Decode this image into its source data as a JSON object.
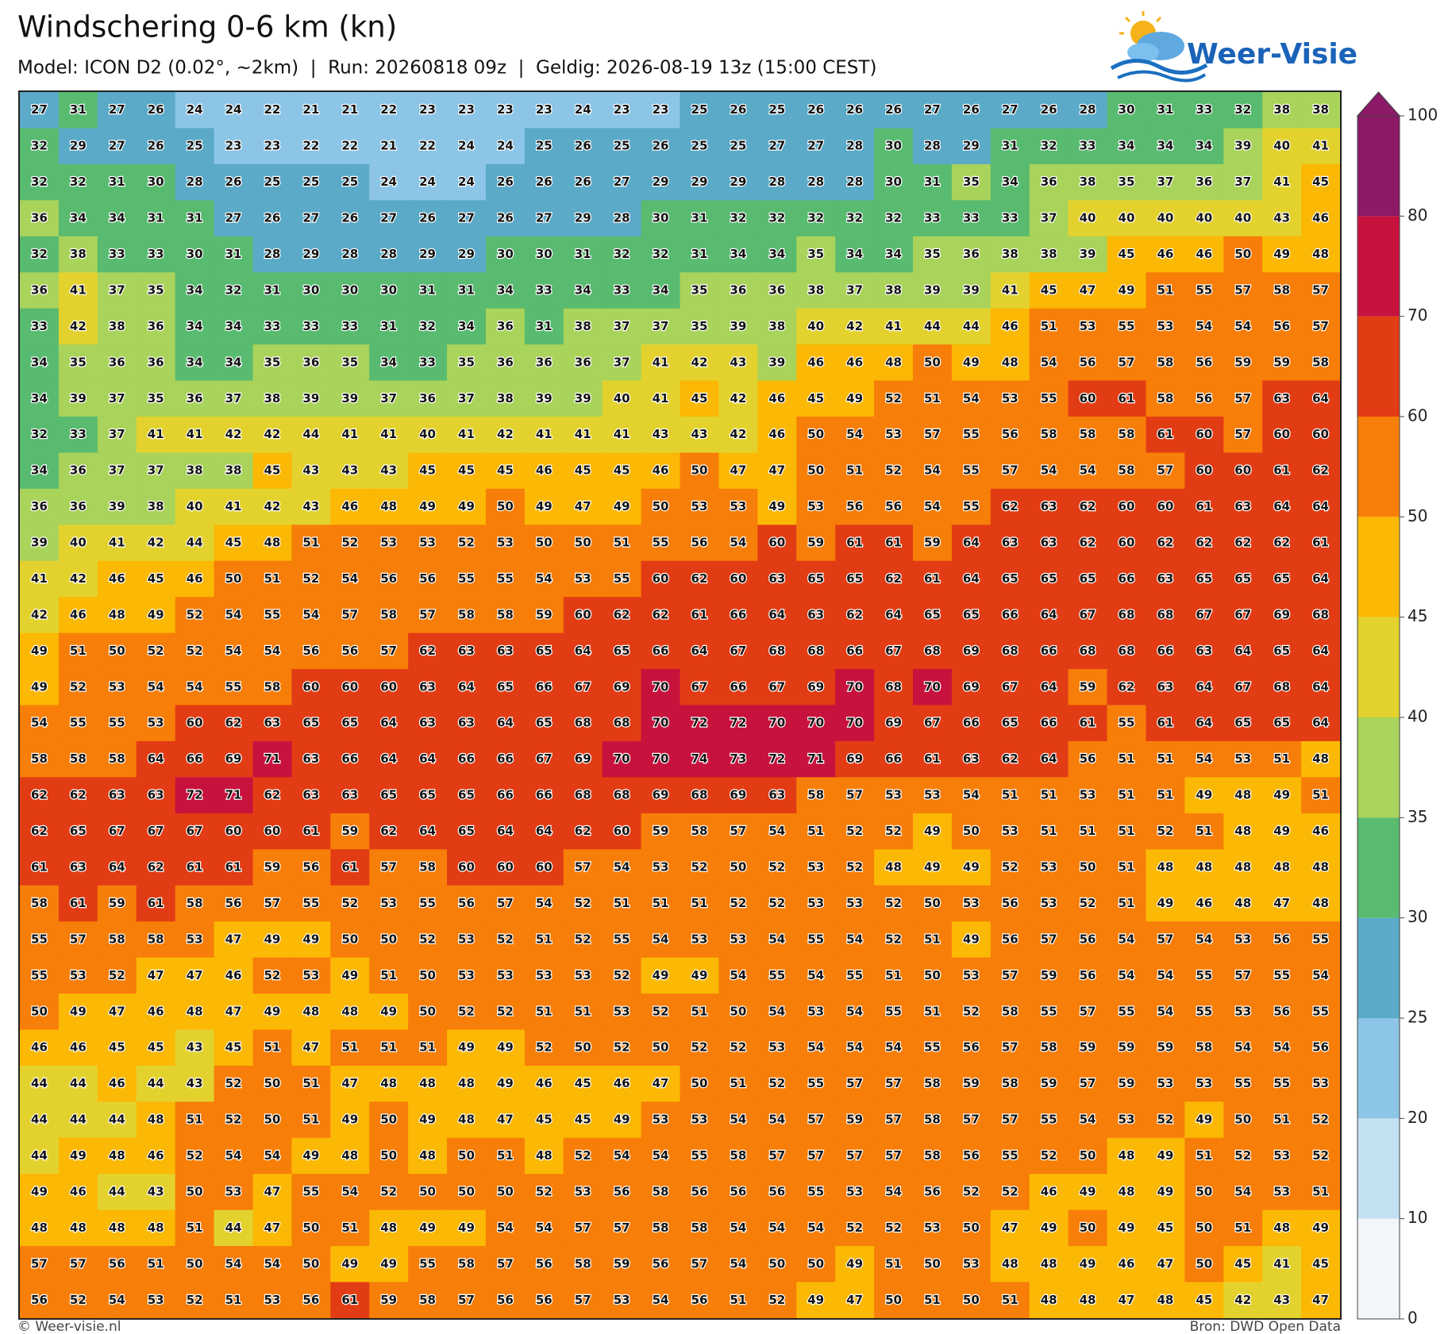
{
  "header": {
    "title": "Windschering 0-6 km (kn)",
    "subtitle": "Model: ICON D2 (0.02°, ~2km)  |  Run: 20260818 09z  |  Geldig: 2026-08-19 13z (15:00 CEST)"
  },
  "logo": {
    "text": "Weer-Visie"
  },
  "grid": {
    "rows": [
      [
        27,
        31,
        27,
        26,
        24,
        24,
        22,
        21,
        21,
        22,
        23,
        23,
        23,
        23,
        24,
        23,
        23,
        25,
        26,
        25,
        26,
        26,
        26,
        27,
        26,
        27,
        26,
        28,
        30,
        31,
        33,
        32,
        38,
        38
      ],
      [
        32,
        29,
        27,
        26,
        25,
        23,
        23,
        22,
        22,
        21,
        22,
        24,
        24,
        25,
        26,
        25,
        26,
        25,
        25,
        27,
        27,
        28,
        30,
        28,
        29,
        31,
        32,
        33,
        34,
        34,
        34,
        39,
        40,
        41
      ],
      [
        32,
        32,
        31,
        30,
        28,
        26,
        25,
        25,
        25,
        24,
        24,
        24,
        26,
        26,
        26,
        27,
        29,
        29,
        29,
        28,
        28,
        28,
        30,
        31,
        35,
        34,
        36,
        38,
        35,
        37,
        36,
        37,
        41,
        45
      ],
      [
        36,
        34,
        34,
        31,
        31,
        27,
        26,
        27,
        26,
        27,
        26,
        27,
        26,
        27,
        29,
        28,
        30,
        31,
        32,
        32,
        32,
        32,
        32,
        33,
        33,
        33,
        37,
        40,
        40,
        40,
        40,
        40,
        43,
        46
      ],
      [
        32,
        38,
        33,
        33,
        30,
        31,
        28,
        29,
        28,
        28,
        29,
        29,
        30,
        30,
        31,
        32,
        32,
        31,
        34,
        34,
        35,
        34,
        34,
        35,
        36,
        38,
        38,
        39,
        45,
        46,
        46,
        50,
        49,
        48
      ],
      [
        36,
        41,
        37,
        35,
        34,
        32,
        31,
        30,
        30,
        30,
        31,
        31,
        34,
        33,
        34,
        33,
        34,
        35,
        36,
        36,
        38,
        37,
        38,
        39,
        39,
        41,
        45,
        47,
        49,
        51,
        55,
        57,
        58,
        57
      ],
      [
        33,
        42,
        38,
        36,
        34,
        34,
        33,
        33,
        33,
        31,
        32,
        34,
        36,
        31,
        38,
        37,
        37,
        35,
        39,
        38,
        40,
        42,
        41,
        44,
        44,
        46,
        51,
        53,
        55,
        53,
        54,
        54,
        56,
        57
      ],
      [
        34,
        35,
        36,
        36,
        34,
        34,
        35,
        36,
        35,
        34,
        33,
        35,
        36,
        36,
        36,
        37,
        41,
        42,
        43,
        39,
        46,
        46,
        48,
        50,
        49,
        48,
        54,
        56,
        57,
        58,
        56,
        59,
        59,
        58
      ],
      [
        34,
        39,
        37,
        35,
        36,
        37,
        38,
        39,
        39,
        37,
        36,
        37,
        38,
        39,
        39,
        40,
        41,
        45,
        42,
        46,
        45,
        49,
        52,
        51,
        54,
        53,
        55,
        60,
        61,
        58,
        56,
        57,
        63,
        64
      ],
      [
        32,
        33,
        37,
        41,
        41,
        42,
        42,
        44,
        41,
        41,
        40,
        41,
        42,
        41,
        41,
        41,
        43,
        43,
        42,
        46,
        50,
        54,
        53,
        57,
        55,
        56,
        58,
        58,
        58,
        61,
        60,
        57,
        60,
        60
      ],
      [
        34,
        36,
        37,
        37,
        38,
        38,
        45,
        43,
        43,
        43,
        45,
        45,
        45,
        46,
        45,
        45,
        46,
        50,
        47,
        47,
        50,
        51,
        52,
        54,
        55,
        57,
        54,
        54,
        58,
        57,
        60,
        60,
        61,
        62
      ],
      [
        36,
        36,
        39,
        38,
        40,
        41,
        42,
        43,
        46,
        48,
        49,
        49,
        50,
        49,
        47,
        49,
        50,
        53,
        53,
        49,
        53,
        56,
        56,
        54,
        55,
        62,
        63,
        62,
        60,
        60,
        61,
        63,
        64,
        64
      ],
      [
        39,
        40,
        41,
        42,
        44,
        45,
        48,
        51,
        52,
        53,
        53,
        52,
        53,
        50,
        50,
        51,
        55,
        56,
        54,
        60,
        59,
        61,
        61,
        59,
        64,
        63,
        63,
        62,
        60,
        62,
        62,
        62,
        62,
        61
      ],
      [
        41,
        42,
        46,
        45,
        46,
        50,
        51,
        52,
        54,
        56,
        56,
        55,
        55,
        54,
        53,
        55,
        60,
        62,
        60,
        63,
        65,
        65,
        62,
        61,
        64,
        65,
        65,
        65,
        66,
        63,
        65,
        65,
        65,
        64
      ],
      [
        42,
        46,
        48,
        49,
        52,
        54,
        55,
        54,
        57,
        58,
        57,
        58,
        58,
        59,
        60,
        62,
        62,
        61,
        66,
        64,
        63,
        62,
        64,
        65,
        65,
        66,
        64,
        67,
        68,
        68,
        67,
        67,
        69,
        68
      ],
      [
        49,
        51,
        50,
        52,
        52,
        54,
        54,
        56,
        56,
        57,
        62,
        63,
        63,
        65,
        64,
        65,
        66,
        64,
        67,
        68,
        68,
        66,
        67,
        68,
        69,
        68,
        66,
        68,
        68,
        66,
        63,
        64,
        65,
        64
      ],
      [
        49,
        52,
        53,
        54,
        54,
        55,
        58,
        60,
        60,
        60,
        63,
        64,
        65,
        66,
        67,
        69,
        70,
        67,
        66,
        67,
        69,
        70,
        68,
        70,
        69,
        67,
        64,
        59,
        62,
        63,
        64,
        67,
        68,
        64
      ],
      [
        54,
        55,
        55,
        53,
        60,
        62,
        63,
        65,
        65,
        64,
        63,
        63,
        64,
        65,
        68,
        68,
        70,
        72,
        72,
        70,
        70,
        70,
        69,
        67,
        66,
        65,
        66,
        61,
        55,
        61,
        64,
        65,
        65,
        64
      ],
      [
        58,
        58,
        58,
        64,
        66,
        69,
        71,
        63,
        66,
        64,
        64,
        66,
        66,
        67,
        69,
        70,
        70,
        74,
        73,
        72,
        71,
        69,
        66,
        61,
        63,
        62,
        64,
        56,
        51,
        51,
        54,
        53,
        51,
        48
      ],
      [
        62,
        62,
        63,
        63,
        72,
        71,
        62,
        63,
        63,
        65,
        65,
        65,
        66,
        66,
        68,
        68,
        69,
        68,
        69,
        63,
        58,
        57,
        53,
        53,
        54,
        51,
        51,
        53,
        51,
        51,
        49,
        48,
        49,
        51
      ],
      [
        62,
        65,
        67,
        67,
        67,
        60,
        60,
        61,
        59,
        62,
        64,
        65,
        64,
        64,
        62,
        60,
        59,
        58,
        57,
        54,
        51,
        52,
        52,
        49,
        50,
        53,
        51,
        51,
        51,
        52,
        51,
        48,
        49,
        46
      ],
      [
        61,
        63,
        64,
        62,
        61,
        61,
        59,
        56,
        61,
        57,
        58,
        60,
        60,
        60,
        57,
        54,
        53,
        52,
        50,
        52,
        53,
        52,
        48,
        49,
        49,
        52,
        53,
        50,
        51,
        48,
        48,
        48,
        48,
        48
      ],
      [
        58,
        61,
        59,
        61,
        58,
        56,
        57,
        55,
        52,
        53,
        55,
        56,
        57,
        54,
        52,
        51,
        51,
        51,
        52,
        52,
        53,
        53,
        52,
        50,
        53,
        56,
        53,
        52,
        51,
        49,
        46,
        48,
        47,
        48
      ],
      [
        55,
        57,
        58,
        58,
        53,
        47,
        49,
        49,
        50,
        50,
        52,
        53,
        52,
        51,
        52,
        55,
        54,
        53,
        53,
        54,
        55,
        54,
        52,
        51,
        49,
        56,
        57,
        56,
        54,
        57,
        54,
        53,
        56,
        55
      ],
      [
        55,
        53,
        52,
        47,
        47,
        46,
        52,
        53,
        49,
        51,
        50,
        53,
        53,
        53,
        53,
        52,
        49,
        49,
        54,
        55,
        54,
        55,
        51,
        50,
        53,
        57,
        59,
        56,
        54,
        54,
        55,
        57,
        55,
        54
      ],
      [
        50,
        49,
        47,
        46,
        48,
        47,
        49,
        48,
        48,
        49,
        50,
        52,
        52,
        51,
        51,
        53,
        52,
        51,
        50,
        54,
        53,
        54,
        55,
        51,
        52,
        58,
        55,
        57,
        55,
        54,
        55,
        53,
        56,
        55
      ],
      [
        46,
        46,
        45,
        45,
        43,
        45,
        51,
        47,
        51,
        51,
        51,
        49,
        49,
        52,
        50,
        52,
        50,
        52,
        52,
        53,
        54,
        54,
        54,
        55,
        56,
        57,
        58,
        59,
        59,
        59,
        58,
        54,
        54,
        56
      ],
      [
        44,
        44,
        46,
        44,
        43,
        52,
        50,
        51,
        47,
        48,
        48,
        48,
        49,
        46,
        45,
        46,
        47,
        50,
        51,
        52,
        55,
        57,
        57,
        58,
        59,
        58,
        59,
        57,
        59,
        53,
        53,
        55,
        55,
        53
      ],
      [
        44,
        44,
        44,
        48,
        51,
        52,
        50,
        51,
        49,
        50,
        49,
        48,
        47,
        45,
        45,
        49,
        53,
        53,
        54,
        54,
        57,
        59,
        57,
        58,
        57,
        57,
        55,
        54,
        53,
        52,
        49,
        50,
        51,
        52
      ],
      [
        44,
        49,
        48,
        46,
        52,
        54,
        54,
        49,
        48,
        50,
        48,
        50,
        51,
        48,
        52,
        54,
        54,
        55,
        58,
        57,
        57,
        57,
        57,
        58,
        56,
        55,
        52,
        50,
        48,
        49,
        51,
        52,
        53,
        52
      ],
      [
        49,
        46,
        44,
        43,
        50,
        53,
        47,
        55,
        54,
        52,
        50,
        50,
        50,
        52,
        53,
        56,
        58,
        56,
        56,
        56,
        55,
        53,
        54,
        56,
        52,
        52,
        46,
        49,
        48,
        49,
        50,
        54,
        53,
        51
      ],
      [
        48,
        48,
        48,
        48,
        51,
        44,
        47,
        50,
        51,
        48,
        49,
        49,
        54,
        54,
        57,
        57,
        58,
        58,
        54,
        54,
        54,
        52,
        52,
        53,
        50,
        47,
        49,
        50,
        49,
        45,
        50,
        51,
        48,
        49
      ],
      [
        57,
        57,
        56,
        51,
        50,
        54,
        54,
        50,
        49,
        49,
        55,
        58,
        57,
        56,
        58,
        59,
        56,
        57,
        54,
        50,
        50,
        49,
        51,
        50,
        53,
        48,
        48,
        49,
        46,
        47,
        50,
        45,
        41,
        45
      ],
      [
        56,
        52,
        54,
        53,
        52,
        51,
        53,
        56,
        61,
        59,
        58,
        57,
        56,
        56,
        57,
        53,
        54,
        56,
        51,
        52,
        49,
        47,
        50,
        51,
        50,
        51,
        48,
        48,
        47,
        48,
        45,
        42,
        43,
        47
      ]
    ]
  },
  "colorbar": {
    "levels": [
      0,
      10,
      20,
      25,
      30,
      35,
      40,
      45,
      50,
      60,
      70,
      80,
      100
    ],
    "colors": [
      "#f2f6fa",
      "#c4e1f1",
      "#8cc5e6",
      "#5aaac8",
      "#58bb70",
      "#a9d35a",
      "#e3d22e",
      "#fbb804",
      "#f77e08",
      "#e23c14",
      "#c8123e",
      "#8c1a68"
    ]
  },
  "footer": {
    "left": "© Weer-visie.nl",
    "right": "Bron: DWD Open Data"
  }
}
